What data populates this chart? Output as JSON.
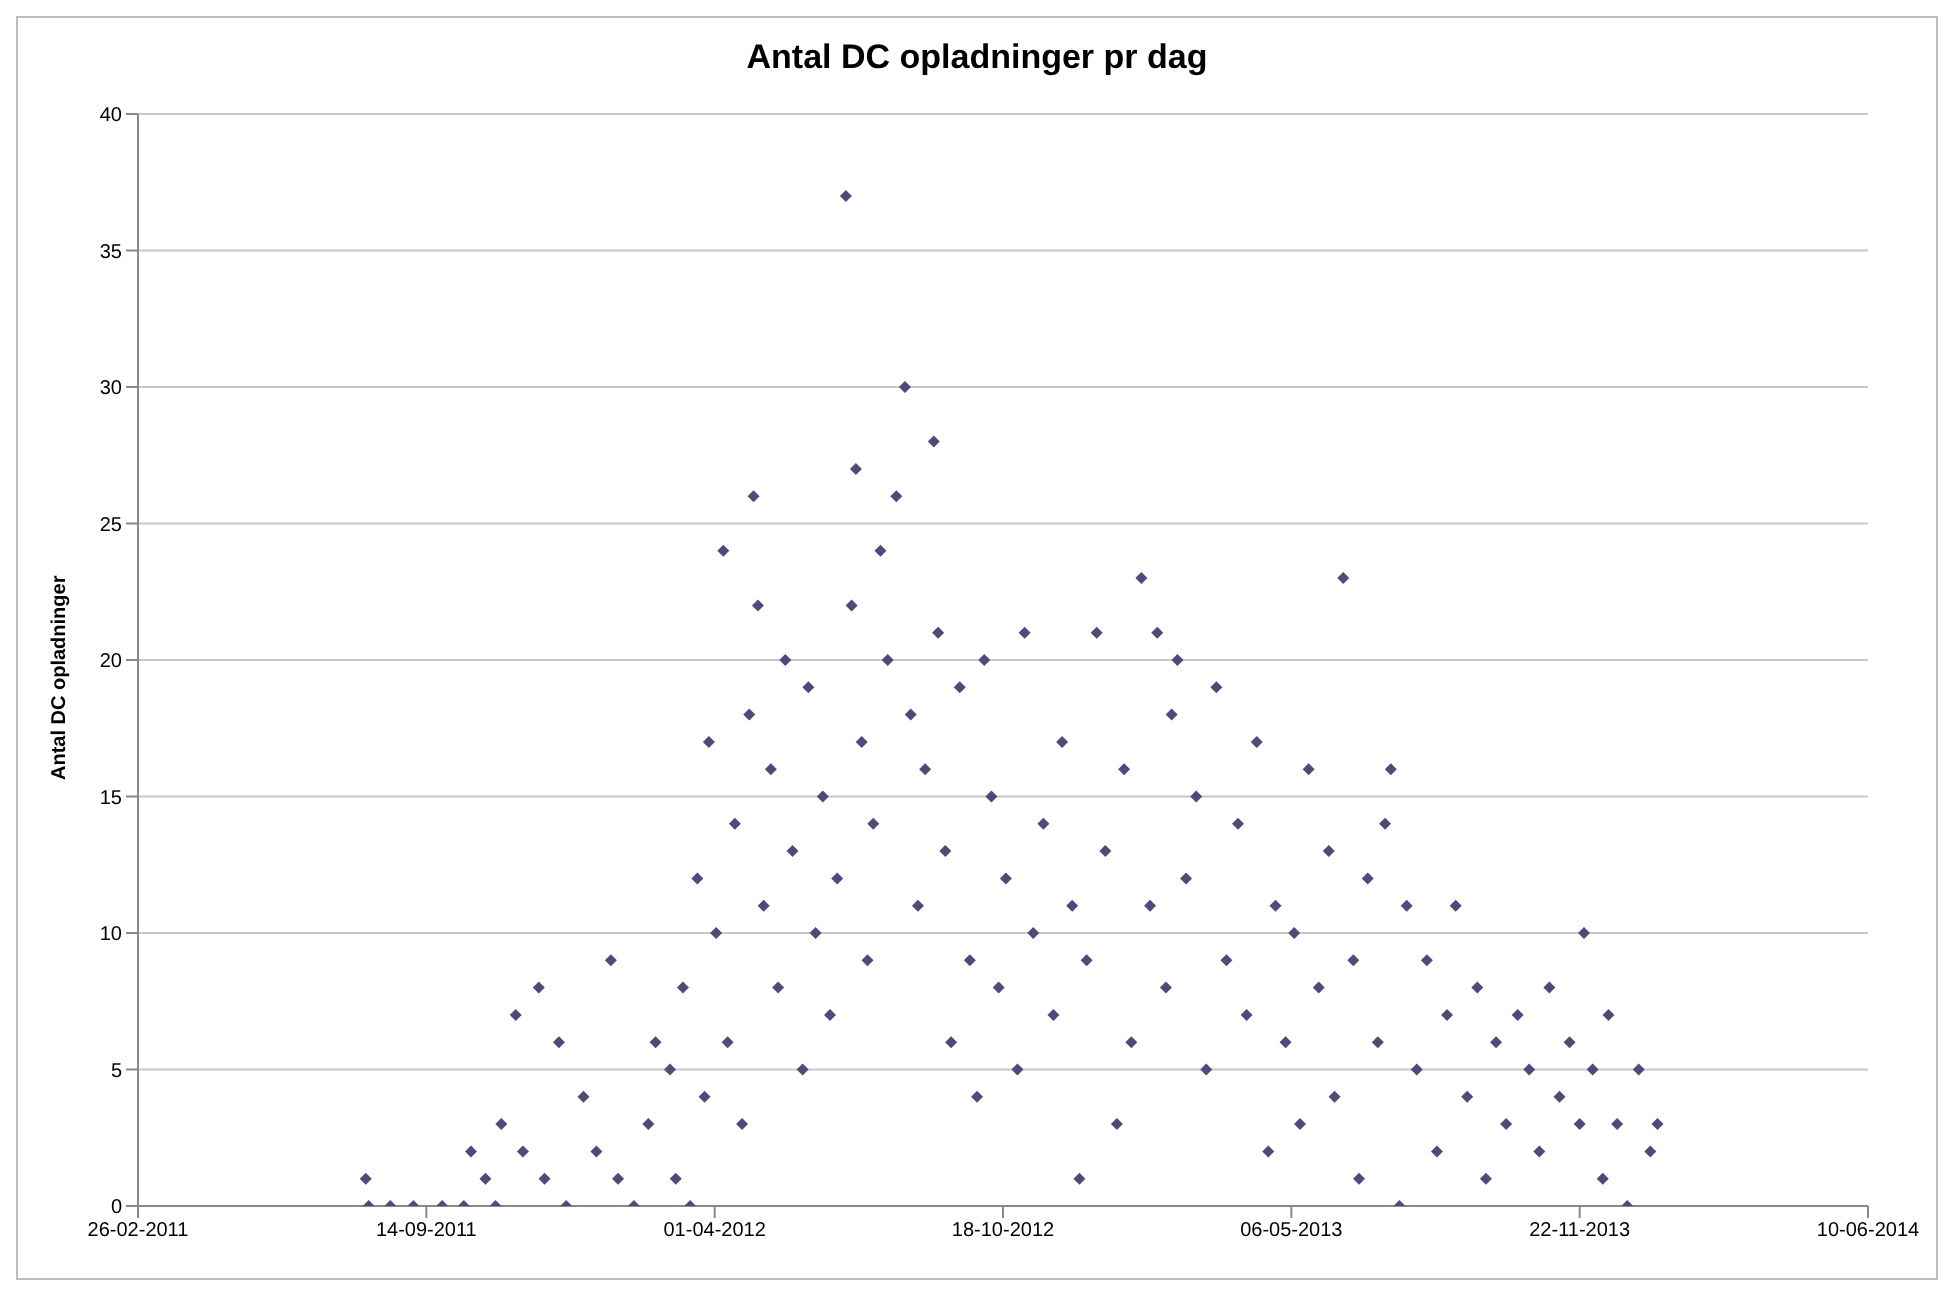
{
  "chart_data": {
    "type": "scatter",
    "title": "Antal DC opladninger pr dag",
    "ylabel": "Antal DC opladninger",
    "x": [
      "2011-08-03",
      "2011-08-05",
      "2011-08-20",
      "2011-09-05",
      "2011-09-25",
      "2011-10-10",
      "2011-10-15",
      "2011-10-25",
      "2011-11-01",
      "2011-11-05",
      "2011-11-15",
      "2011-11-20",
      "2011-12-01",
      "2011-12-05",
      "2011-12-15",
      "2011-12-20",
      "2012-01-01",
      "2012-01-10",
      "2012-01-20",
      "2012-01-25",
      "2012-02-05",
      "2012-02-15",
      "2012-02-20",
      "2012-03-01",
      "2012-03-05",
      "2012-03-10",
      "2012-03-15",
      "2012-03-20",
      "2012-03-25",
      "2012-03-28",
      "2012-04-02",
      "2012-04-07",
      "2012-04-10",
      "2012-04-15",
      "2012-04-20",
      "2012-04-25",
      "2012-04-28",
      "2012-05-01",
      "2012-05-05",
      "2012-05-10",
      "2012-05-15",
      "2012-05-20",
      "2012-05-25",
      "2012-06-01",
      "2012-06-05",
      "2012-06-10",
      "2012-06-15",
      "2012-06-20",
      "2012-06-25",
      "2012-07-01",
      "2012-07-05",
      "2012-07-08",
      "2012-07-12",
      "2012-07-16",
      "2012-07-20",
      "2012-07-25",
      "2012-07-30",
      "2012-08-05",
      "2012-08-11",
      "2012-08-15",
      "2012-08-20",
      "2012-08-25",
      "2012-08-31",
      "2012-09-03",
      "2012-09-08",
      "2012-09-12",
      "2012-09-18",
      "2012-09-25",
      "2012-09-30",
      "2012-10-05",
      "2012-10-10",
      "2012-10-15",
      "2012-10-20",
      "2012-10-28",
      "2012-11-02",
      "2012-11-08",
      "2012-11-15",
      "2012-11-22",
      "2012-11-28",
      "2012-12-05",
      "2012-12-10",
      "2012-12-15",
      "2012-12-22",
      "2012-12-28",
      "2013-01-05",
      "2013-01-10",
      "2013-01-15",
      "2013-01-22",
      "2013-01-28",
      "2013-02-02",
      "2013-02-08",
      "2013-02-12",
      "2013-02-16",
      "2013-02-22",
      "2013-03-01",
      "2013-03-08",
      "2013-03-15",
      "2013-03-22",
      "2013-03-30",
      "2013-04-05",
      "2013-04-12",
      "2013-04-20",
      "2013-04-25",
      "2013-05-02",
      "2013-05-08",
      "2013-05-12",
      "2013-05-18",
      "2013-05-25",
      "2013-06-01",
      "2013-06-05",
      "2013-06-11",
      "2013-06-18",
      "2013-06-22",
      "2013-06-28",
      "2013-07-05",
      "2013-07-10",
      "2013-07-14",
      "2013-07-20",
      "2013-07-25",
      "2013-08-01",
      "2013-08-08",
      "2013-08-15",
      "2013-08-22",
      "2013-08-28",
      "2013-09-05",
      "2013-09-12",
      "2013-09-18",
      "2013-09-25",
      "2013-10-02",
      "2013-10-10",
      "2013-10-18",
      "2013-10-25",
      "2013-11-01",
      "2013-11-08",
      "2013-11-15",
      "2013-11-22",
      "2013-11-25",
      "2013-12-01",
      "2013-12-08",
      "2013-12-12",
      "2013-12-18",
      "2013-12-25",
      "2014-01-02",
      "2014-01-10",
      "2014-01-15"
    ],
    "values": [
      1,
      0,
      0,
      0,
      0,
      0,
      2,
      1,
      0,
      3,
      7,
      2,
      8,
      1,
      6,
      0,
      4,
      2,
      9,
      1,
      0,
      3,
      6,
      5,
      1,
      8,
      0,
      12,
      4,
      17,
      10,
      24,
      6,
      14,
      3,
      18,
      26,
      22,
      11,
      16,
      8,
      20,
      13,
      5,
      19,
      10,
      15,
      7,
      12,
      37,
      22,
      27,
      17,
      9,
      14,
      24,
      20,
      26,
      30,
      18,
      11,
      16,
      28,
      21,
      13,
      6,
      19,
      9,
      4,
      20,
      15,
      8,
      12,
      5,
      21,
      10,
      14,
      7,
      17,
      11,
      1,
      9,
      21,
      13,
      3,
      16,
      6,
      23,
      11,
      21,
      8,
      18,
      20,
      12,
      15,
      5,
      19,
      9,
      14,
      7,
      17,
      2,
      11,
      6,
      10,
      3,
      16,
      8,
      13,
      4,
      23,
      9,
      1,
      12,
      6,
      14,
      16,
      0,
      11,
      5,
      9,
      2,
      7,
      11,
      4,
      8,
      1,
      6,
      3,
      7,
      5,
      2,
      8,
      4,
      6,
      3,
      10,
      5,
      1,
      7,
      3,
      0,
      5,
      2,
      3
    ],
    "color": "#4b4b7d",
    "marker": "diamond",
    "grid": "y",
    "xlim": [
      "2011-02-26",
      "2014-06-10"
    ],
    "xticks": [
      {
        "value": "2011-02-26",
        "label": "26-02-2011"
      },
      {
        "value": "2011-09-14",
        "label": "14-09-2011"
      },
      {
        "value": "2012-04-01",
        "label": "01-04-2012"
      },
      {
        "value": "2012-10-18",
        "label": "18-10-2012"
      },
      {
        "value": "2013-05-06",
        "label": "06-05-2013"
      },
      {
        "value": "2013-11-22",
        "label": "22-11-2013"
      },
      {
        "value": "2014-06-10",
        "label": "10-06-2014"
      }
    ],
    "ylim": [
      0,
      40
    ],
    "yticks": [
      0,
      5,
      10,
      15,
      20,
      25,
      30,
      35,
      40
    ]
  }
}
